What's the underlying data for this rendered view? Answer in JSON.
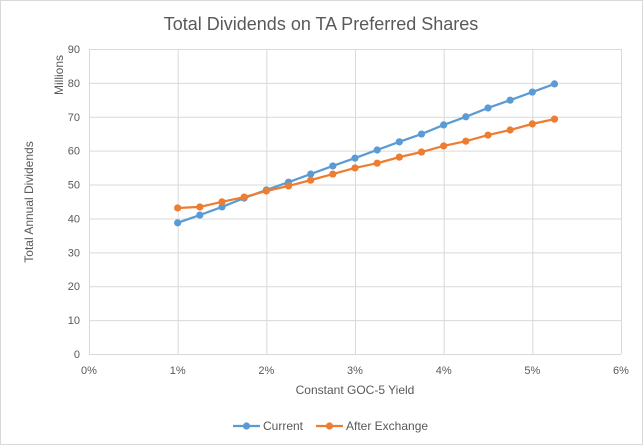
{
  "chart_data": {
    "type": "line",
    "title": "Total Dividends on TA Preferred Shares",
    "xlabel": "Constant GOC-5 Yield",
    "ylabel": "Total Annual Dividends",
    "y_units_label": "Millions",
    "xlim": [
      0,
      6
    ],
    "ylim": [
      0,
      90
    ],
    "x_ticks": [
      0,
      1,
      2,
      3,
      4,
      5,
      6
    ],
    "x_tick_labels": [
      "0%",
      "1%",
      "2%",
      "3%",
      "4%",
      "5%",
      "6%"
    ],
    "y_ticks": [
      0,
      10,
      20,
      30,
      40,
      50,
      60,
      70,
      80,
      90
    ],
    "y_tick_labels": [
      "0",
      "10",
      "20",
      "30",
      "40",
      "50",
      "60",
      "70",
      "80",
      "90"
    ],
    "grid": true,
    "legend_position": "bottom",
    "x": [
      1,
      1.25,
      1.5,
      1.75,
      2,
      2.25,
      2.5,
      2.75,
      3,
      3.25,
      3.5,
      3.75,
      4,
      4.25,
      4.5,
      4.75,
      5,
      5.25
    ],
    "series": [
      {
        "name": "Current",
        "color": "#5b9bd5",
        "values": [
          38.7,
          41.0,
          43.4,
          46.0,
          48.4,
          50.7,
          53.1,
          55.5,
          57.8,
          60.2,
          62.6,
          64.9,
          67.6,
          70.0,
          72.6,
          74.9,
          77.3,
          79.7
        ]
      },
      {
        "name": "After Exchange",
        "color": "#ed7d31",
        "values": [
          43.1,
          43.4,
          44.9,
          46.3,
          48.1,
          49.6,
          51.3,
          53.1,
          54.9,
          56.3,
          58.1,
          59.6,
          61.4,
          62.8,
          64.6,
          66.1,
          67.9,
          69.3
        ]
      }
    ]
  }
}
